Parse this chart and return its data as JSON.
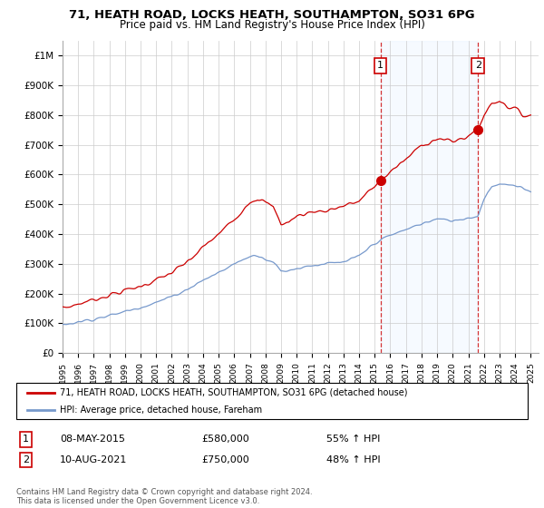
{
  "title": "71, HEATH ROAD, LOCKS HEATH, SOUTHAMPTON, SO31 6PG",
  "subtitle": "Price paid vs. HM Land Registry's House Price Index (HPI)",
  "ylabel_ticks": [
    "£0",
    "£100K",
    "£200K",
    "£300K",
    "£400K",
    "£500K",
    "£600K",
    "£700K",
    "£800K",
    "£900K",
    "£1M"
  ],
  "ytick_values": [
    0,
    100000,
    200000,
    300000,
    400000,
    500000,
    600000,
    700000,
    800000,
    900000,
    1000000
  ],
  "ylim": [
    0,
    1050000
  ],
  "xlim_start": 1995.0,
  "xlim_end": 2025.5,
  "background_color": "#ffffff",
  "plot_bg_color": "#ffffff",
  "grid_color": "#cccccc",
  "red_line_color": "#cc0000",
  "blue_line_color": "#7799cc",
  "shade_color": "#ddeeff",
  "marker1_x": 2015.37,
  "marker1_y": 580000,
  "marker2_x": 2021.62,
  "marker2_y": 750000,
  "marker1_label": "1",
  "marker2_label": "2",
  "legend_entry1": "71, HEATH ROAD, LOCKS HEATH, SOUTHAMPTON, SO31 6PG (detached house)",
  "legend_entry2": "HPI: Average price, detached house, Fareham",
  "annotation1_num": "1",
  "annotation1_date": "08-MAY-2015",
  "annotation1_price": "£580,000",
  "annotation1_hpi": "55% ↑ HPI",
  "annotation2_num": "2",
  "annotation2_date": "10-AUG-2021",
  "annotation2_price": "£750,000",
  "annotation2_hpi": "48% ↑ HPI",
  "footer": "Contains HM Land Registry data © Crown copyright and database right 2024.\nThis data is licensed under the Open Government Licence v3.0.",
  "xtick_years": [
    1995,
    1996,
    1997,
    1998,
    1999,
    2000,
    2001,
    2002,
    2003,
    2004,
    2005,
    2006,
    2007,
    2008,
    2009,
    2010,
    2011,
    2012,
    2013,
    2014,
    2015,
    2016,
    2017,
    2018,
    2019,
    2020,
    2021,
    2022,
    2023,
    2024,
    2025
  ]
}
